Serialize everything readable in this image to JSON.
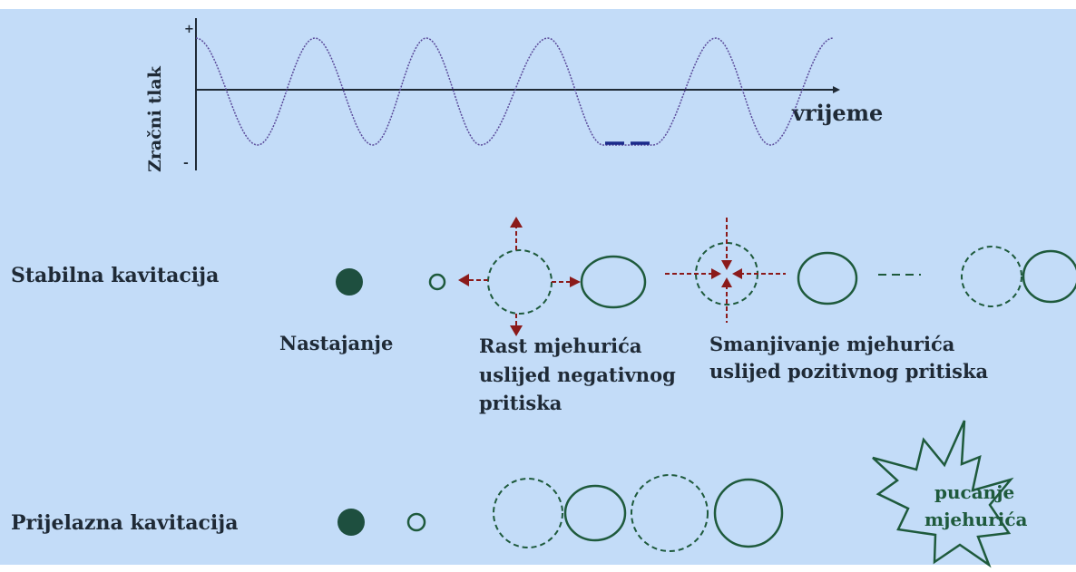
{
  "graph": {
    "y_axis_label": "Zračni tlak",
    "x_axis_label": "vrijeme",
    "y_plus": "+",
    "y_minus": "-"
  },
  "rows": {
    "stable": "Stabilna kavitacija",
    "transient": "Prijelazna kavitacija"
  },
  "captions": {
    "formation": "Nastajanje",
    "growth": [
      "Rast mjehurića",
      "uslijed negativnog",
      "pritiska"
    ],
    "shrink": [
      "Smanjivanje mjehurića",
      "uslijed pozitivnog pritiska"
    ]
  },
  "burst": [
    "pucanje",
    "mjehurića"
  ],
  "colors": {
    "background": "#c3dcf8",
    "wave": "#5a4a9a",
    "bubble": "#1e5a3c",
    "arrow": "#8b1a1a",
    "dash_accent": "#1a2a8a"
  }
}
